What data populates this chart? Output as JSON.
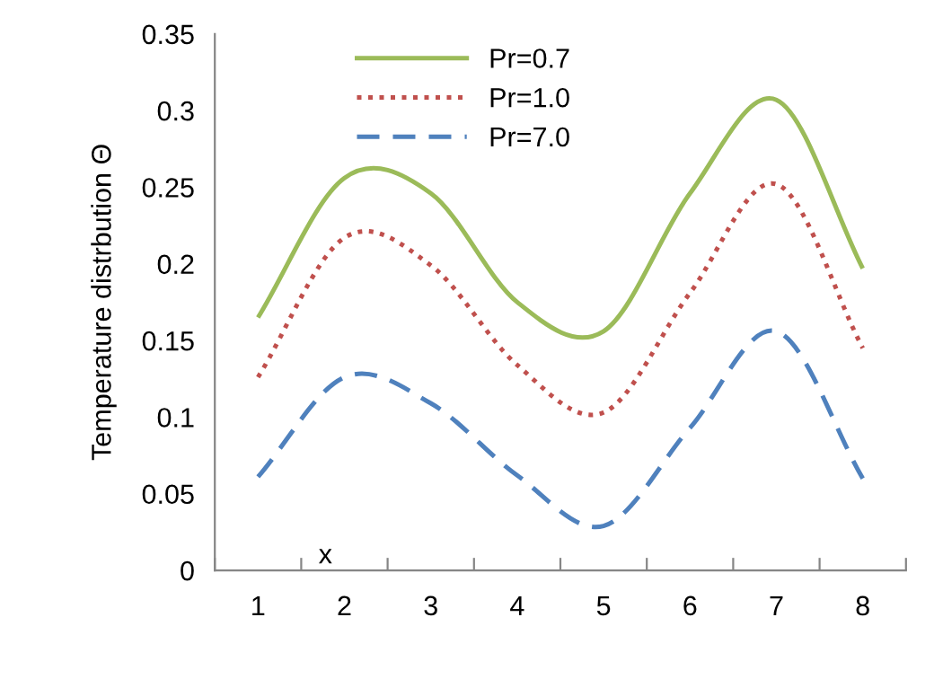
{
  "chart_data": {
    "type": "line",
    "ylabel": "Temperature distrbution Θ",
    "xlabel": "x",
    "categories": [
      "1",
      "2",
      "3",
      "4",
      "5",
      "6",
      "7",
      "8"
    ],
    "series": [
      {
        "name": "Pr=0.7",
        "color": "#9bbb59",
        "line_style": "solid",
        "values": [
          0.165,
          0.256,
          0.246,
          0.175,
          0.156,
          0.246,
          0.307,
          0.197
        ]
      },
      {
        "name": "Pr=1.0",
        "color": "#c0504d",
        "line_style": "dotted",
        "values": [
          0.126,
          0.217,
          0.199,
          0.134,
          0.103,
          0.181,
          0.252,
          0.145
        ]
      },
      {
        "name": "Pr=7.0",
        "color": "#4f81bd",
        "line_style": "dashed",
        "values": [
          0.061,
          0.126,
          0.109,
          0.062,
          0.029,
          0.093,
          0.156,
          0.06
        ]
      }
    ],
    "ylim": [
      0,
      0.35
    ],
    "yticks": [
      {
        "value": 0,
        "label": "0"
      },
      0.05,
      0.1,
      0.15,
      0.2,
      0.25,
      0.3,
      0.35
    ],
    "legend": "top",
    "grid": false,
    "marker": "none"
  }
}
